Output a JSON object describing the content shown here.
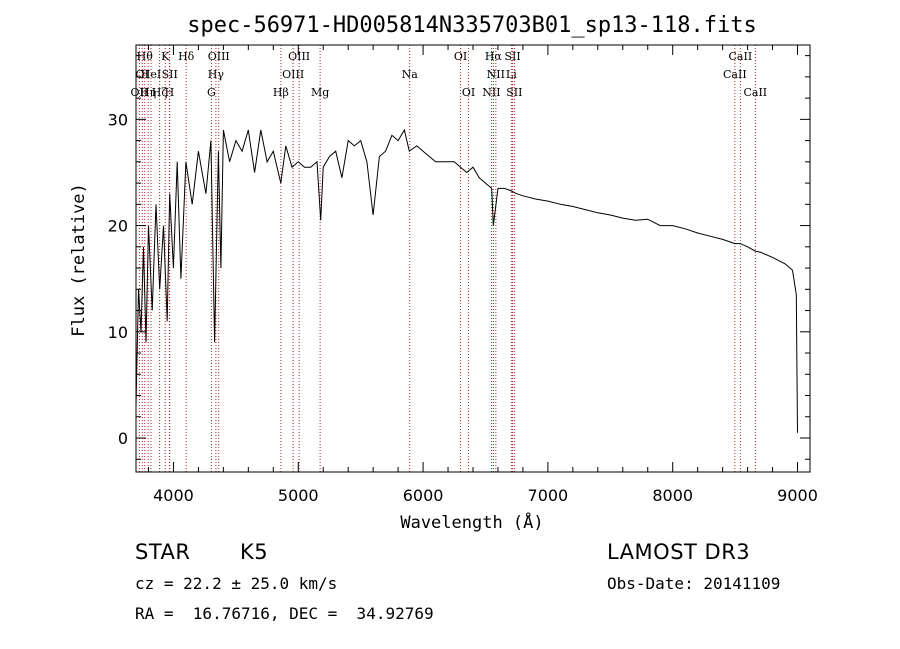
{
  "chart_data": {
    "type": "line",
    "title": "spec-56971-HD005814N335703B01_sp13-118.fits",
    "xlabel": "Wavelength (Å)",
    "ylabel": "Flux (relative)",
    "xlim": [
      3700,
      9100
    ],
    "ylim": [
      -3.2,
      37
    ],
    "xticks": [
      4000,
      5000,
      6000,
      7000,
      8000,
      9000
    ],
    "yticks": [
      0,
      10,
      20,
      30
    ],
    "grid": false,
    "legend": "none",
    "series": [
      {
        "name": "flux",
        "x": [
          3700,
          3720,
          3740,
          3760,
          3780,
          3800,
          3830,
          3860,
          3890,
          3920,
          3950,
          3970,
          4000,
          4030,
          4060,
          4100,
          4150,
          4200,
          4260,
          4300,
          4330,
          4360,
          4380,
          4400,
          4450,
          4500,
          4550,
          4600,
          4650,
          4700,
          4750,
          4800,
          4860,
          4900,
          4950,
          5000,
          5050,
          5100,
          5150,
          5180,
          5200,
          5250,
          5300,
          5350,
          5400,
          5450,
          5500,
          5550,
          5600,
          5650,
          5700,
          5750,
          5800,
          5850,
          5890,
          5950,
          6000,
          6050,
          6100,
          6150,
          6200,
          6250,
          6300,
          6350,
          6400,
          6450,
          6500,
          6550,
          6563,
          6600,
          6650,
          6700,
          6750,
          6800,
          6900,
          7000,
          7100,
          7200,
          7300,
          7400,
          7500,
          7600,
          7700,
          7800,
          7900,
          8000,
          8100,
          8200,
          8300,
          8400,
          8498,
          8542,
          8600,
          8662,
          8700,
          8800,
          8900,
          8960,
          8990,
          9000
        ],
        "values": [
          3,
          14,
          10,
          18,
          9,
          20,
          12,
          22,
          14,
          20,
          11,
          23,
          16,
          26,
          15,
          26,
          22,
          27,
          23,
          28,
          9,
          27,
          16,
          29,
          26,
          28,
          27,
          29,
          25,
          29,
          26,
          27,
          24,
          27.5,
          25.5,
          26,
          25.5,
          25.5,
          26,
          20.5,
          25.5,
          26.5,
          27,
          24.5,
          28,
          27.5,
          28,
          26,
          21,
          26.5,
          27,
          28.5,
          28,
          29,
          27,
          27.5,
          27,
          26.5,
          26,
          26,
          26,
          26,
          25.5,
          25,
          25.5,
          24.5,
          24,
          23.5,
          20,
          23.5,
          23.5,
          23.3,
          23,
          22.8,
          22.5,
          22.3,
          22,
          21.8,
          21.5,
          21.2,
          21,
          20.7,
          20.5,
          20.6,
          20,
          20,
          19.7,
          19.3,
          19,
          18.7,
          18.3,
          18.3,
          18,
          17.6,
          17.5,
          17,
          16.4,
          15.8,
          13.5,
          0.5
        ]
      }
    ],
    "lines": [
      {
        "x": 3727,
        "label": "OII",
        "row": 2,
        "align": "middle"
      },
      {
        "x": 3750,
        "label": "OI",
        "row": 1,
        "align": "middle"
      },
      {
        "x": 3770,
        "label": "Hθ",
        "row": 0,
        "align": "middle"
      },
      {
        "x": 3797,
        "label": "Hη",
        "row": 2,
        "align": "middle"
      },
      {
        "x": 3820,
        "label": "HeI",
        "row": 1,
        "align": "middle"
      },
      {
        "x": 3889,
        "label": "Hζ",
        "row": 2,
        "align": "middle"
      },
      {
        "x": 3934,
        "label": "K",
        "row": 0,
        "align": "middle"
      },
      {
        "x": 3968,
        "label": "H",
        "row": 2,
        "align": "middle"
      },
      {
        "x": 3970,
        "label": "SII",
        "row": 1,
        "align": "middle"
      },
      {
        "x": 4102,
        "label": "Hδ",
        "row": 0,
        "align": "middle"
      },
      {
        "x": 4304,
        "label": "G",
        "row": 2,
        "align": "middle"
      },
      {
        "x": 4340,
        "label": "Hγ",
        "row": 1,
        "align": "middle"
      },
      {
        "x": 4363,
        "label": "OIII",
        "row": 0,
        "align": "middle"
      },
      {
        "x": 4861,
        "label": "Hβ",
        "row": 2,
        "align": "middle"
      },
      {
        "x": 4959,
        "label": "OIII",
        "row": 1,
        "align": "middle"
      },
      {
        "x": 5007,
        "label": "OIII",
        "row": 0,
        "align": "middle"
      },
      {
        "x": 5175,
        "label": "Mg",
        "row": 2,
        "align": "middle"
      },
      {
        "x": 5893,
        "label": "Na",
        "row": 1,
        "align": "middle"
      },
      {
        "x": 6300,
        "label": "OI",
        "row": 0,
        "align": "middle"
      },
      {
        "x": 6364,
        "label": "OI",
        "row": 2,
        "align": "middle"
      },
      {
        "x": 6548,
        "label": "NII",
        "row": 2,
        "align": "middle"
      },
      {
        "x": 6563,
        "label": "Hα",
        "row": 0,
        "align": "middle"
      },
      {
        "x": 6583,
        "label": "NII",
        "row": 1,
        "align": "middle"
      },
      {
        "x": 6707,
        "label": "Li",
        "row": 1,
        "align": "middle"
      },
      {
        "x": 6717,
        "label": "SII",
        "row": 0,
        "align": "middle"
      },
      {
        "x": 6731,
        "label": "SII",
        "row": 2,
        "align": "middle"
      },
      {
        "x": 8498,
        "label": "CaII",
        "row": 1,
        "align": "middle"
      },
      {
        "x": 8542,
        "label": "CaII",
        "row": 0,
        "align": "middle"
      },
      {
        "x": 8662,
        "label": "CaII",
        "row": 2,
        "align": "middle"
      }
    ],
    "line_color": "#b22222"
  },
  "info": {
    "object_type": "STAR",
    "subclass": "K5",
    "survey": "LAMOST DR3",
    "cz": "cz = 22.2 ± 25.0 km/s",
    "obs_date": "Obs-Date: 20141109",
    "coords": "RA =  16.76716, DEC =  34.92769"
  }
}
